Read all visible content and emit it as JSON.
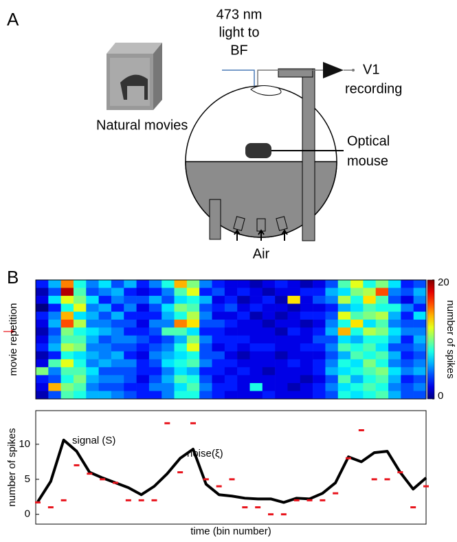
{
  "panel_a": {
    "label": "A",
    "light": [
      "473 nm",
      "light to",
      "BF"
    ],
    "recording": [
      "V1",
      "recording"
    ],
    "movies": "Natural movies",
    "mouse": [
      "Optical",
      "mouse"
    ],
    "air": "Air"
  },
  "panel_b": {
    "label": "B"
  },
  "chart_data": [
    {
      "type": "heatmap",
      "ylabel": "movie repetition",
      "values": [
        [
          3,
          6,
          15,
          8,
          5,
          7,
          4,
          6,
          3,
          5,
          8,
          14,
          10,
          5,
          3,
          2,
          2,
          1,
          2,
          3,
          2,
          1,
          2,
          4,
          9,
          12,
          8,
          10,
          7,
          3,
          4
        ],
        [
          1,
          4,
          19,
          9,
          4,
          5,
          6,
          3,
          2,
          3,
          5,
          9,
          12,
          3,
          4,
          2,
          3,
          2,
          1,
          2,
          2,
          3,
          3,
          6,
          7,
          10,
          11,
          16,
          5,
          4,
          6
        ],
        [
          2,
          7,
          12,
          10,
          7,
          3,
          5,
          4,
          4,
          6,
          4,
          7,
          8,
          6,
          2,
          3,
          1,
          2,
          3,
          1,
          13,
          2,
          4,
          5,
          11,
          8,
          13,
          9,
          4,
          2,
          5
        ],
        [
          0,
          3,
          8,
          12,
          5,
          6,
          3,
          5,
          2,
          4,
          7,
          10,
          9,
          4,
          3,
          4,
          2,
          3,
          2,
          2,
          1,
          2,
          2,
          3,
          6,
          7,
          9,
          8,
          8,
          5,
          3
        ],
        [
          3,
          5,
          14,
          7,
          6,
          4,
          6,
          3,
          3,
          3,
          6,
          8,
          11,
          5,
          2,
          2,
          3,
          1,
          2,
          1,
          2,
          3,
          3,
          4,
          12,
          9,
          10,
          11,
          6,
          3,
          7
        ],
        [
          2,
          6,
          16,
          11,
          5,
          5,
          4,
          4,
          2,
          5,
          5,
          15,
          13,
          4,
          4,
          3,
          2,
          2,
          1,
          2,
          2,
          1,
          2,
          5,
          8,
          13,
          7,
          9,
          5,
          4,
          4
        ],
        [
          1,
          4,
          10,
          8,
          7,
          6,
          5,
          3,
          3,
          4,
          9,
          9,
          7,
          3,
          3,
          2,
          2,
          2,
          2,
          1,
          3,
          2,
          3,
          6,
          14,
          8,
          11,
          10,
          7,
          5,
          5
        ],
        [
          2,
          5,
          9,
          9,
          6,
          4,
          5,
          5,
          4,
          3,
          4,
          6,
          10,
          5,
          3,
          3,
          3,
          2,
          2,
          2,
          2,
          2,
          4,
          4,
          7,
          6,
          8,
          8,
          6,
          3,
          6
        ],
        [
          3,
          6,
          11,
          10,
          5,
          5,
          4,
          4,
          3,
          4,
          5,
          8,
          12,
          4,
          2,
          3,
          2,
          3,
          3,
          2,
          2,
          3,
          3,
          5,
          9,
          8,
          9,
          7,
          4,
          4,
          5
        ],
        [
          1,
          3,
          8,
          7,
          6,
          5,
          6,
          3,
          2,
          5,
          6,
          7,
          8,
          4,
          4,
          2,
          1,
          2,
          2,
          1,
          2,
          2,
          2,
          4,
          6,
          9,
          8,
          9,
          6,
          3,
          4
        ],
        [
          2,
          9,
          12,
          8,
          5,
          6,
          5,
          5,
          3,
          4,
          7,
          8,
          9,
          5,
          3,
          3,
          2,
          2,
          2,
          2,
          3,
          2,
          3,
          5,
          8,
          7,
          10,
          8,
          5,
          4,
          5
        ],
        [
          10,
          5,
          9,
          9,
          7,
          4,
          4,
          4,
          3,
          3,
          5,
          7,
          6,
          3,
          3,
          2,
          3,
          2,
          1,
          2,
          2,
          2,
          3,
          6,
          7,
          8,
          9,
          10,
          7,
          5,
          6
        ],
        [
          3,
          4,
          8,
          10,
          6,
          5,
          5,
          4,
          2,
          4,
          6,
          9,
          8,
          4,
          2,
          3,
          2,
          2,
          2,
          2,
          2,
          1,
          2,
          4,
          9,
          6,
          8,
          9,
          6,
          3,
          4
        ],
        [
          2,
          14,
          10,
          9,
          5,
          4,
          4,
          3,
          3,
          5,
          5,
          7,
          9,
          5,
          3,
          3,
          2,
          8,
          2,
          2,
          1,
          2,
          3,
          5,
          7,
          8,
          9,
          8,
          5,
          4,
          5
        ],
        [
          1,
          4,
          9,
          8,
          6,
          6,
          5,
          4,
          3,
          3,
          5,
          8,
          8,
          4,
          3,
          2,
          2,
          2,
          3,
          2,
          2,
          2,
          3,
          4,
          8,
          7,
          8,
          9,
          6,
          4,
          4
        ]
      ],
      "colorbar": {
        "label": "number of spikes",
        "lim": [
          0,
          20
        ],
        "ticks": [
          0,
          20
        ]
      }
    },
    {
      "type": "line",
      "xlabel": "time (bin number)",
      "ylabel": "number of spikes",
      "ylim": [
        -1.4,
        14.8
      ],
      "yticks": [
        0,
        5,
        10
      ],
      "series": [
        {
          "name": "signal (S)",
          "color": "#000000",
          "values": [
            1.8,
            4.7,
            10.6,
            9.0,
            6.0,
            5.2,
            4.5,
            3.8,
            2.8,
            4.0,
            5.8,
            8.0,
            9.3,
            4.3,
            2.8,
            2.6,
            2.3,
            2.2,
            2.2,
            1.7,
            2.3,
            2.2,
            3.0,
            4.5,
            8.2,
            7.5,
            8.8,
            9.0,
            6.0,
            3.6,
            5.2
          ]
        },
        {
          "name": "noise(ξ)",
          "color": "#e8141c",
          "values": [
            1.7,
            1,
            2,
            7,
            5.8,
            5,
            4.5,
            2,
            2,
            2,
            13,
            6,
            13,
            5,
            4,
            5,
            1,
            1,
            0,
            0,
            2,
            2,
            2,
            3,
            8,
            12,
            5,
            5,
            6,
            1,
            4
          ]
        }
      ]
    }
  ]
}
